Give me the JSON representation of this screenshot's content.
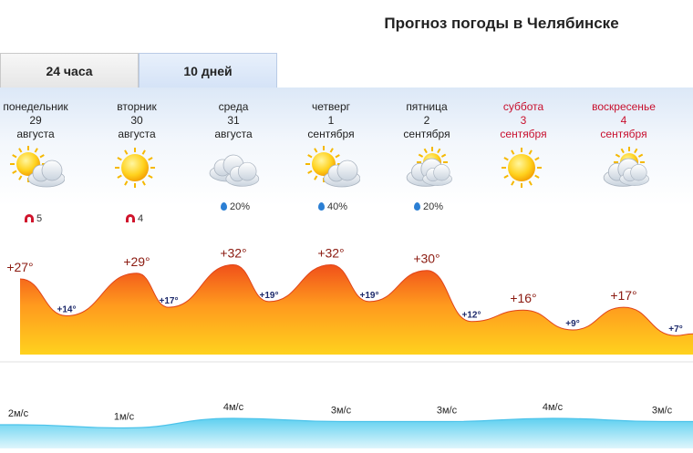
{
  "title": "Прогноз погоды в Челябинске",
  "tabs": [
    {
      "label": "24 часа",
      "active": false
    },
    {
      "label": "10 дней",
      "active": true
    }
  ],
  "days": [
    {
      "weekday": "понедельник",
      "date": "29",
      "month": "августа",
      "weekend": false,
      "icon": "sun-cloud-icon",
      "precip": "",
      "geo": "5",
      "hi": "+27°",
      "lo": "+14°"
    },
    {
      "weekday": "вторник",
      "date": "30",
      "month": "августа",
      "weekend": false,
      "icon": "sun-icon",
      "precip": "",
      "geo": "4",
      "hi": "+29°",
      "lo": "+17°"
    },
    {
      "weekday": "среда",
      "date": "31",
      "month": "августа",
      "weekend": false,
      "icon": "cloud-icon",
      "precip": "20%",
      "geo": "",
      "hi": "+32°",
      "lo": "+19°"
    },
    {
      "weekday": "четверг",
      "date": "1",
      "month": "сентября",
      "weekend": false,
      "icon": "sun-cloud-icon",
      "precip": "40%",
      "geo": "",
      "hi": "+32°",
      "lo": "+19°"
    },
    {
      "weekday": "пятница",
      "date": "2",
      "month": "сентября",
      "weekend": false,
      "icon": "cloud-sun-icon",
      "precip": "20%",
      "geo": "",
      "hi": "+30°",
      "lo": "+12°"
    },
    {
      "weekday": "суббота",
      "date": "3",
      "month": "сентября",
      "weekend": true,
      "icon": "sun-icon",
      "precip": "",
      "geo": "",
      "hi": "+16°",
      "lo": "+9°"
    },
    {
      "weekday": "воскресенье",
      "date": "4",
      "month": "сентября",
      "weekend": true,
      "icon": "cloud-sun-icon",
      "precip": "",
      "geo": "",
      "hi": "+17°",
      "lo": "+7°"
    }
  ],
  "wind": [
    "2м/с",
    "1м/с",
    "4м/с",
    "3м/с",
    "3м/с",
    "4м/с",
    "3м/с"
  ],
  "colors": {
    "weekend": "#c8102e",
    "temp_top": "#f0501a",
    "temp_bottom": "#ffd21e",
    "wind": "#5fd0f0",
    "geo": "#d0142c",
    "precip": "#2b7fd4"
  },
  "chart_data": {
    "type": "area",
    "categories": [
      "понедельник 29 августа",
      "вторник 30 августа",
      "среда 31 августа",
      "четверг 1 сентября",
      "пятница 2 сентября",
      "суббота 3 сентября",
      "воскресенье 4 сентября"
    ],
    "series": [
      {
        "values": [
          27,
          29,
          32,
          32,
          30,
          16,
          17
        ]
      },
      {
        "values": [
          14,
          17,
          19,
          19,
          12,
          9,
          7
        ]
      }
    ],
    "wind_values": [
      2,
      1,
      4,
      3,
      3,
      4,
      3
    ]
  }
}
